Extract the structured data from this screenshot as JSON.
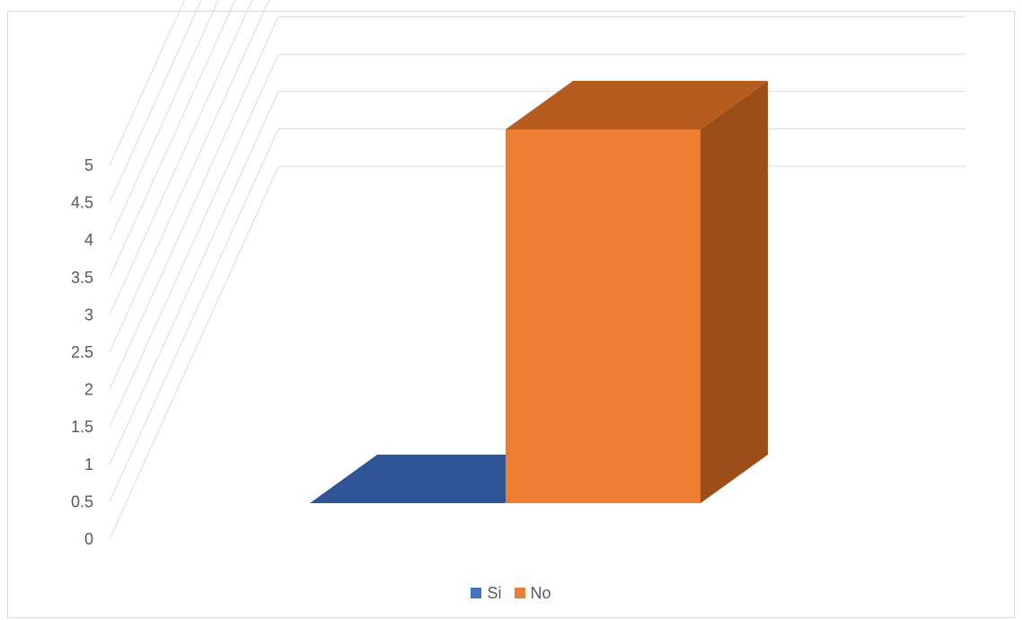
{
  "chart_data": {
    "type": "bar",
    "style": "3d-column",
    "categories": [
      ""
    ],
    "series": [
      {
        "name": "Si",
        "values": [
          0
        ],
        "color": "#4472C4",
        "top_color": "#2F5597"
      },
      {
        "name": "No",
        "values": [
          5
        ],
        "color": "#ED7D31",
        "top_color": "#B65C1E",
        "side_color": "#9C4E19"
      }
    ],
    "title": "",
    "xlabel": "",
    "ylabel": "",
    "ylim": [
      0,
      5
    ],
    "yticks": [
      "0",
      "0.5",
      "1",
      "1.5",
      "2",
      "2.5",
      "3",
      "3.5",
      "4",
      "4.5",
      "5"
    ],
    "grid": true,
    "legend_position": "bottom",
    "gridline_color": "#d9d9d9"
  }
}
